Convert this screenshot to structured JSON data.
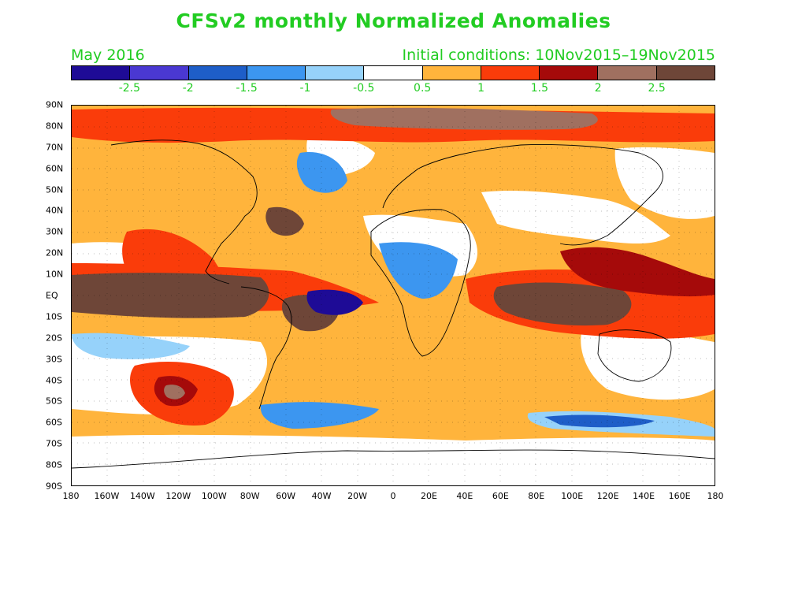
{
  "title": "CFSv2 monthly Normalized Anomalies",
  "month": "May 2016",
  "initial_conditions": "Initial conditions: 10Nov2015–19Nov2015",
  "colorbar": {
    "colors": [
      "#1e0b96",
      "#4a38d2",
      "#1e5ec8",
      "#3c96f0",
      "#96d2fa",
      "#ffffff",
      "#ffb43c",
      "#fa3c0a",
      "#a50a0a",
      "#a07060",
      "#6e4638"
    ],
    "labels": [
      "-2.5",
      "-2",
      "-1.5",
      "-1",
      "-0.5",
      "0.5",
      "1",
      "1.5",
      "2",
      "2.5"
    ]
  },
  "lat_labels": [
    "90N",
    "80N",
    "70N",
    "60N",
    "50N",
    "40N",
    "30N",
    "20N",
    "10N",
    "EQ",
    "10S",
    "20S",
    "30S",
    "40S",
    "50S",
    "60S",
    "70S",
    "80S",
    "90S"
  ],
  "lon_labels": [
    "180",
    "160W",
    "140W",
    "120W",
    "100W",
    "80W",
    "60W",
    "40W",
    "20W",
    "0",
    "20E",
    "40E",
    "60E",
    "80E",
    "100E",
    "120E",
    "140E",
    "160E",
    "180"
  ]
}
